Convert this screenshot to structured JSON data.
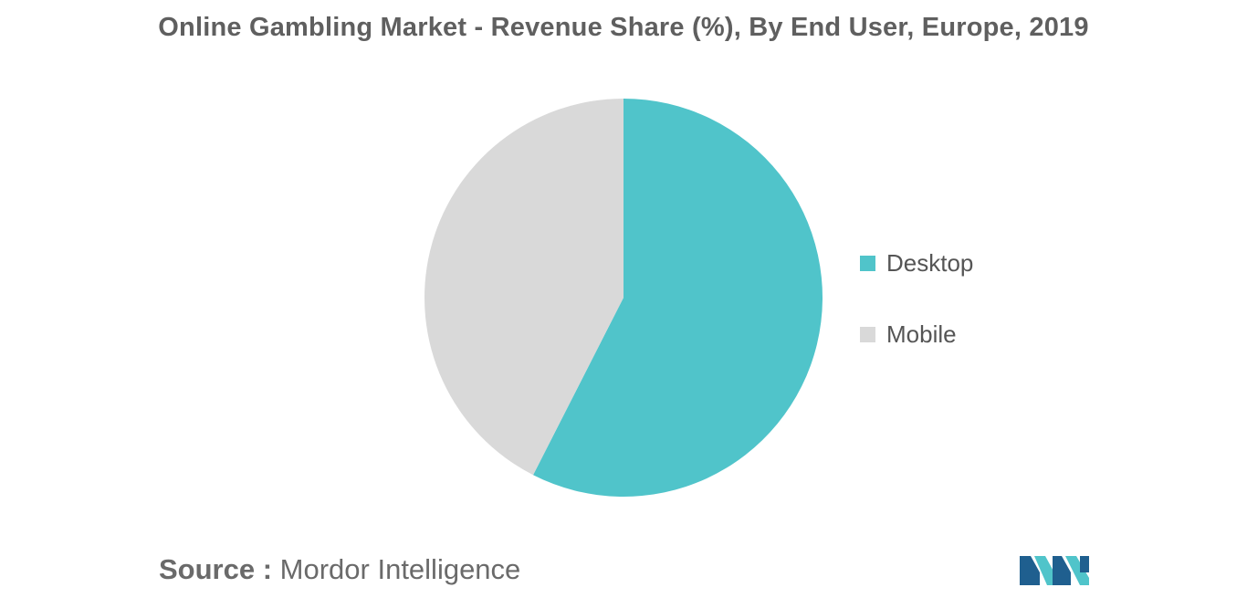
{
  "chart_data": {
    "type": "pie",
    "title": "Online Gambling Market - Revenue Share (%), By End User, Europe, 2019",
    "slices": [
      {
        "label": "Desktop",
        "value": 57.5,
        "color": "#50c4ca"
      },
      {
        "label": "Mobile",
        "value": 42.5,
        "color": "#d9d9d9"
      }
    ],
    "start_angle_deg": 0,
    "direction": "clockwise",
    "legend_position": "right"
  },
  "legend": {
    "items": [
      {
        "label": "Desktop",
        "color": "#50c4ca"
      },
      {
        "label": "Mobile",
        "color": "#d9d9d9"
      }
    ]
  },
  "footer": {
    "source_label": "Source :",
    "source_value": "Mordor Intelligence"
  },
  "logo": {
    "icon": "mordor-intelligence-logo-icon",
    "colors": [
      "#1f5f8f",
      "#50c4ca"
    ]
  }
}
